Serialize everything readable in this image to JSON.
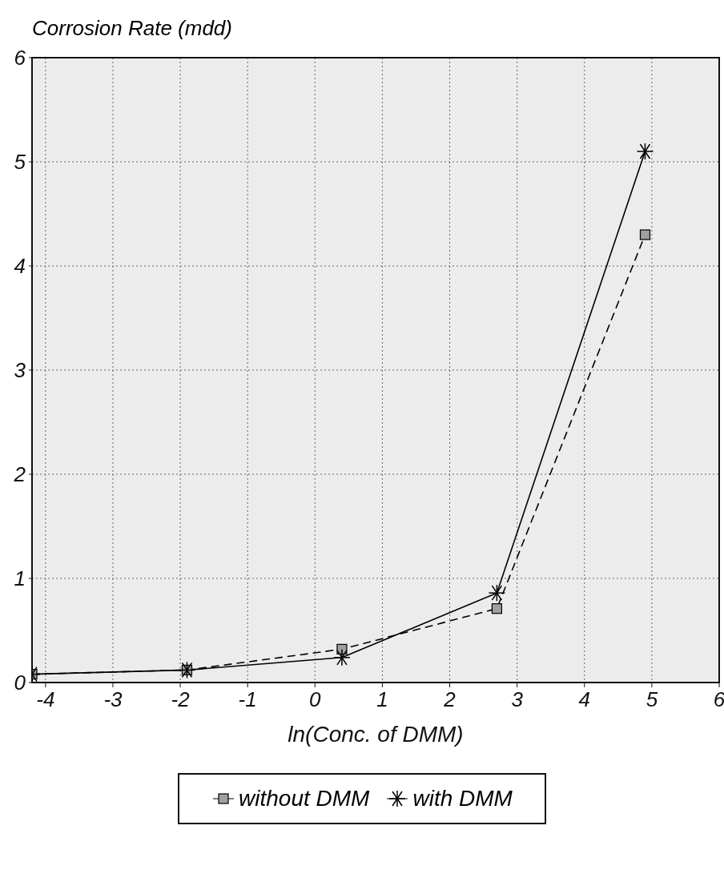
{
  "chart_data": {
    "type": "line",
    "xlabel": "ln(Conc. of DMM)",
    "ylabel": "Corrosion Rate (mdd)",
    "x": [
      -4.2,
      -1.9,
      0.4,
      2.7,
      4.9
    ],
    "series": [
      {
        "name": "without DMM",
        "color": "#000000",
        "values": [
          0.08,
          0.12,
          0.32,
          0.71,
          4.3
        ],
        "marker": "square",
        "line_style": "dashed"
      },
      {
        "name": "with DMM",
        "color": "#000000",
        "values": [
          0.08,
          0.12,
          0.24,
          0.86,
          5.1
        ],
        "marker": "cross",
        "line_style": "solid"
      }
    ],
    "xlim": [
      -4.2,
      6
    ],
    "xticks": [
      -4,
      -3,
      -2,
      -1,
      0,
      1,
      2,
      3,
      4,
      5,
      6
    ],
    "ylim": [
      0,
      6
    ],
    "yticks": [
      0,
      1,
      2,
      3,
      4,
      5,
      6
    ],
    "grid": true,
    "legend": "bottom"
  }
}
